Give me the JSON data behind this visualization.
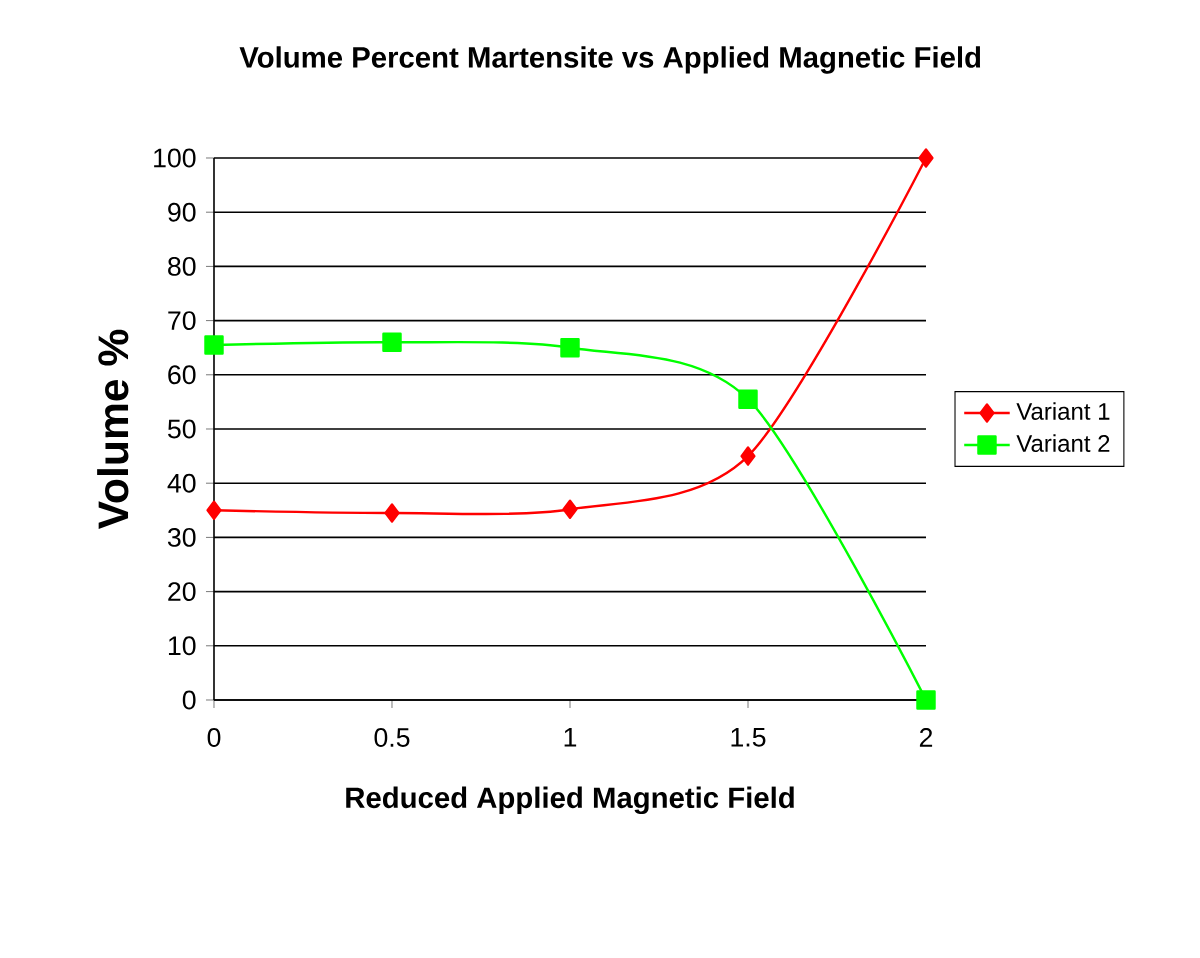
{
  "chart_data": {
    "type": "line",
    "title": "Volume Percent Martensite vs Applied Magnetic Field",
    "xlabel": "Reduced Applied Magnetic Field",
    "ylabel": "Volume %",
    "x": [
      0,
      0.5,
      1,
      1.5,
      2
    ],
    "series": [
      {
        "name": "Variant 1",
        "color": "#ff0000",
        "marker": "diamond",
        "values": [
          35,
          34.5,
          35.2,
          45,
          100
        ]
      },
      {
        "name": "Variant 2",
        "color": "#00ff00",
        "marker": "square",
        "values": [
          65.5,
          66,
          65,
          55.5,
          0
        ]
      }
    ],
    "xlim": [
      0,
      2
    ],
    "ylim": [
      0,
      100
    ],
    "xticks": [
      0,
      0.5,
      1,
      1.5,
      2
    ],
    "yticks": [
      0,
      10,
      20,
      30,
      40,
      50,
      60,
      70,
      80,
      90,
      100
    ],
    "grid": "y",
    "legend": "right",
    "line_style": "solid"
  }
}
